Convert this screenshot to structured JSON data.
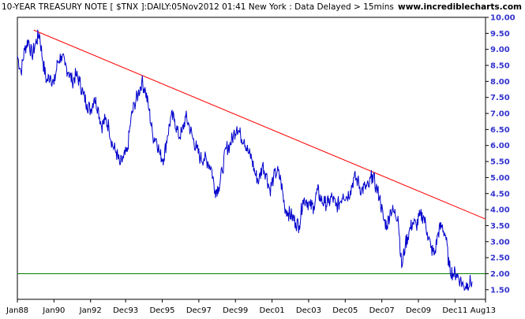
{
  "header": {
    "title": "10-YEAR TREASURY NOTE [ $TNX ]:DAILY:05Nov2012 01:41 New York : Data Delayed > 15mins",
    "site": "www.incrediblecharts.com"
  },
  "chart_data": {
    "type": "line",
    "title": "10-YEAR TREASURY NOTE [ $TNX ]:DAILY:05Nov2012 01:41 New York : Data Delayed > 15mins",
    "xlabel": "",
    "ylabel": "",
    "x_tick_labels": [
      "Jan88",
      "Jan90",
      "Jan92",
      "Dec93",
      "Dec95",
      "Dec97",
      "Dec99",
      "Dec01",
      "Dec03",
      "Dec05",
      "Dec07",
      "Dec09",
      "Dec11",
      "Aug13"
    ],
    "x_range": [
      "1988-01",
      "2013-08"
    ],
    "y_tick_labels": [
      "1.50",
      "2.00",
      "2.50",
      "3.00",
      "3.50",
      "4.00",
      "4.50",
      "5.00",
      "5.50",
      "6.00",
      "6.50",
      "7.00",
      "7.50",
      "8.00",
      "8.50",
      "9.00",
      "9.50",
      "10.00"
    ],
    "ylim": [
      1.2,
      10.0
    ],
    "y_axis_side": "right",
    "grid": false,
    "line_color": "#0000cc",
    "series": [
      {
        "x": [
          1988.0,
          1988.2,
          1988.4,
          1988.6,
          1988.8,
          1989.0,
          1989.2,
          1989.4,
          1989.6,
          1989.8,
          1990.0,
          1990.2,
          1990.4,
          1990.6,
          1990.8,
          1991.0,
          1991.2,
          1991.4,
          1991.6,
          1991.8,
          1992.0,
          1992.2,
          1992.4,
          1992.6,
          1992.8,
          1993.0,
          1993.2,
          1993.4,
          1993.6,
          1993.8,
          1994.0,
          1994.2,
          1994.4,
          1994.6,
          1994.8,
          1995.0,
          1995.2,
          1995.4,
          1995.6,
          1995.8,
          1996.0,
          1996.2,
          1996.4,
          1996.6,
          1996.8,
          1997.0,
          1997.2,
          1997.4,
          1997.6,
          1997.8,
          1998.0,
          1998.2,
          1998.4,
          1998.6,
          1998.8,
          1999.0,
          1999.2,
          1999.4,
          1999.6,
          1999.8,
          2000.0,
          2000.2,
          2000.4,
          2000.6,
          2000.8,
          2001.0,
          2001.2,
          2001.4,
          2001.6,
          2001.8,
          2002.0,
          2002.2,
          2002.4,
          2002.6,
          2002.8,
          2003.0,
          2003.2,
          2003.4,
          2003.6,
          2003.8,
          2004.0,
          2004.2,
          2004.4,
          2004.6,
          2004.8,
          2005.0,
          2005.2,
          2005.4,
          2005.6,
          2005.8,
          2006.0,
          2006.2,
          2006.4,
          2006.6,
          2006.8,
          2007.0,
          2007.2,
          2007.4,
          2007.6,
          2007.8,
          2008.0,
          2008.2,
          2008.4,
          2008.6,
          2008.8,
          2009.0,
          2009.2,
          2009.4,
          2009.6,
          2009.8,
          2010.0,
          2010.2,
          2010.4,
          2010.6,
          2010.8,
          2011.0,
          2011.2,
          2011.4,
          2011.6,
          2011.8,
          2012.0,
          2012.2,
          2012.4,
          2012.6,
          2012.85
        ],
        "values": [
          8.8,
          8.3,
          9.0,
          9.3,
          8.8,
          9.2,
          9.5,
          8.6,
          8.0,
          8.2,
          7.9,
          8.6,
          8.8,
          8.5,
          8.3,
          8.0,
          8.2,
          8.0,
          7.6,
          7.3,
          7.1,
          7.5,
          7.2,
          6.6,
          6.8,
          6.6,
          6.0,
          5.8,
          5.4,
          5.6,
          5.8,
          6.8,
          7.3,
          7.6,
          8.0,
          7.7,
          7.1,
          6.3,
          6.2,
          5.7,
          5.6,
          6.3,
          6.9,
          6.8,
          6.3,
          6.4,
          6.9,
          6.6,
          6.2,
          5.9,
          5.6,
          5.6,
          5.5,
          5.3,
          4.6,
          4.7,
          5.2,
          5.9,
          6.0,
          6.3,
          6.6,
          6.3,
          6.2,
          5.8,
          5.6,
          5.1,
          4.9,
          5.4,
          5.1,
          4.6,
          5.0,
          5.2,
          4.9,
          4.1,
          3.9,
          3.8,
          3.6,
          3.5,
          4.3,
          4.3,
          4.1,
          4.1,
          4.6,
          4.3,
          4.2,
          4.2,
          4.4,
          4.1,
          4.2,
          4.5,
          4.4,
          4.6,
          5.0,
          4.9,
          4.6,
          4.7,
          4.7,
          5.1,
          4.7,
          4.4,
          3.7,
          3.5,
          4.0,
          3.9,
          3.8,
          2.2,
          2.9,
          3.3,
          3.6,
          3.5,
          3.8,
          3.8,
          3.3,
          2.8,
          2.6,
          3.3,
          3.5,
          3.2,
          2.2,
          2.0,
          2.0,
          1.8,
          1.6,
          1.7,
          1.75
        ]
      }
    ],
    "annotations": [
      {
        "type": "trendline",
        "color": "#ff0000",
        "from": {
          "x": 1988.9,
          "y": 9.6
        },
        "to": {
          "x": 2013.6,
          "y": 3.7
        }
      },
      {
        "type": "horizontal_line",
        "color": "#008000",
        "y": 2.0
      }
    ]
  }
}
